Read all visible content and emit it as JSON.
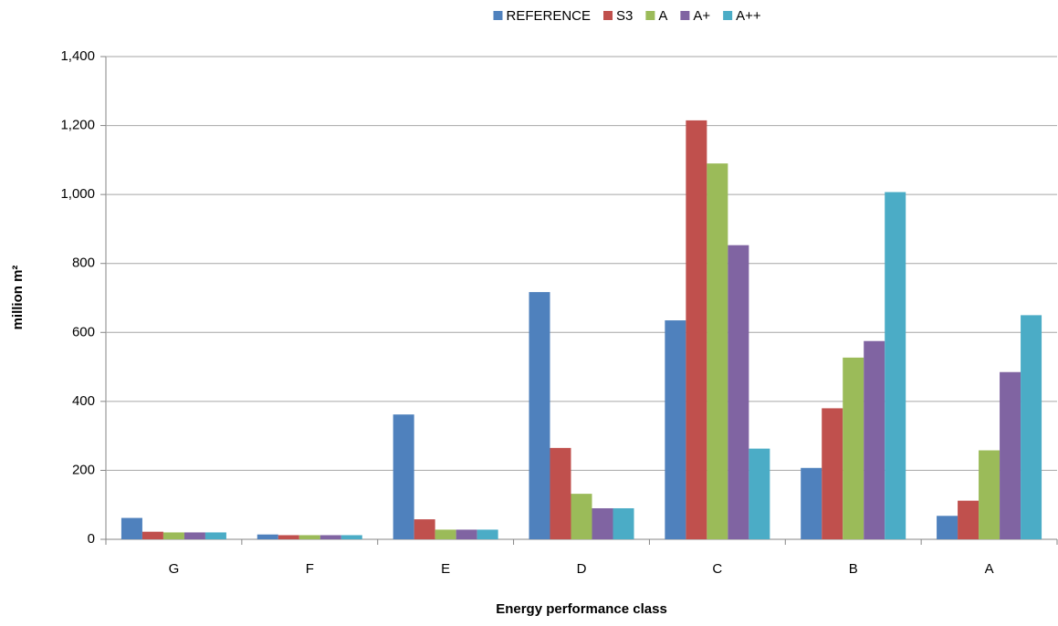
{
  "chart_data": {
    "type": "bar",
    "x_label": "Energy performance class",
    "y_label": "million m²",
    "categories": [
      "G",
      "F",
      "E",
      "D",
      "C",
      "B",
      "A"
    ],
    "series": [
      {
        "name": "REFERENCE",
        "color": "#4f81bd",
        "values": [
          62,
          14,
          362,
          717,
          635,
          207,
          68
        ]
      },
      {
        "name": "S3",
        "color": "#c0504d",
        "values": [
          22,
          12,
          58,
          265,
          1215,
          380,
          112
        ]
      },
      {
        "name": "A",
        "color": "#9bbb59",
        "values": [
          20,
          12,
          28,
          132,
          1090,
          527,
          258
        ]
      },
      {
        "name": "A+",
        "color": "#8064a2",
        "values": [
          20,
          12,
          28,
          90,
          853,
          575,
          485
        ]
      },
      {
        "name": "A++",
        "color": "#4bacc6",
        "values": [
          20,
          12,
          28,
          90,
          263,
          1007,
          650
        ]
      }
    ],
    "ylim": [
      0,
      1400
    ],
    "yticks": [
      0,
      200,
      400,
      600,
      800,
      {
        "value": 1000,
        "label": "1,000"
      },
      {
        "value": 1200,
        "label": "1,200"
      },
      {
        "value": 1400,
        "label": "1,400"
      }
    ],
    "grid": true,
    "legend": "top"
  }
}
